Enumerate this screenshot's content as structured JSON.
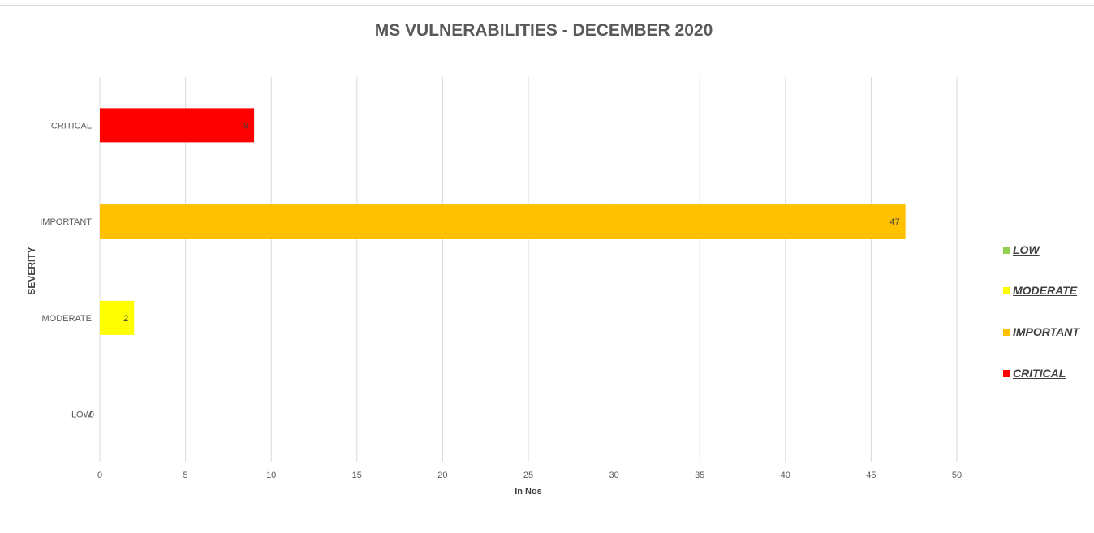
{
  "chart_data": {
    "type": "bar",
    "orientation": "horizontal",
    "title": "MS VULNERABILITIES - DECEMBER 2020",
    "xlabel": "In Nos",
    "ylabel": "SEVERITY",
    "xlim": [
      0,
      50
    ],
    "x_ticks": [
      0,
      5,
      10,
      15,
      20,
      25,
      30,
      35,
      40,
      45,
      50
    ],
    "categories": [
      "CRITICAL",
      "IMPORTANT",
      "MODERATE",
      "LOW"
    ],
    "values": [
      9,
      47,
      2,
      0
    ],
    "colors": [
      "#ff0000",
      "#ffc000",
      "#ffff00",
      "#92d050"
    ],
    "data_labels": [
      "9",
      "47",
      "2",
      "0"
    ],
    "grid": true,
    "legend_position": "right",
    "legend": [
      {
        "label": "LOW",
        "color": "#92d050"
      },
      {
        "label": "MODERATE",
        "color": "#ffff00"
      },
      {
        "label": "IMPORTANT",
        "color": "#ffc000"
      },
      {
        "label": "CRITICAL",
        "color": "#ff0000"
      }
    ]
  }
}
